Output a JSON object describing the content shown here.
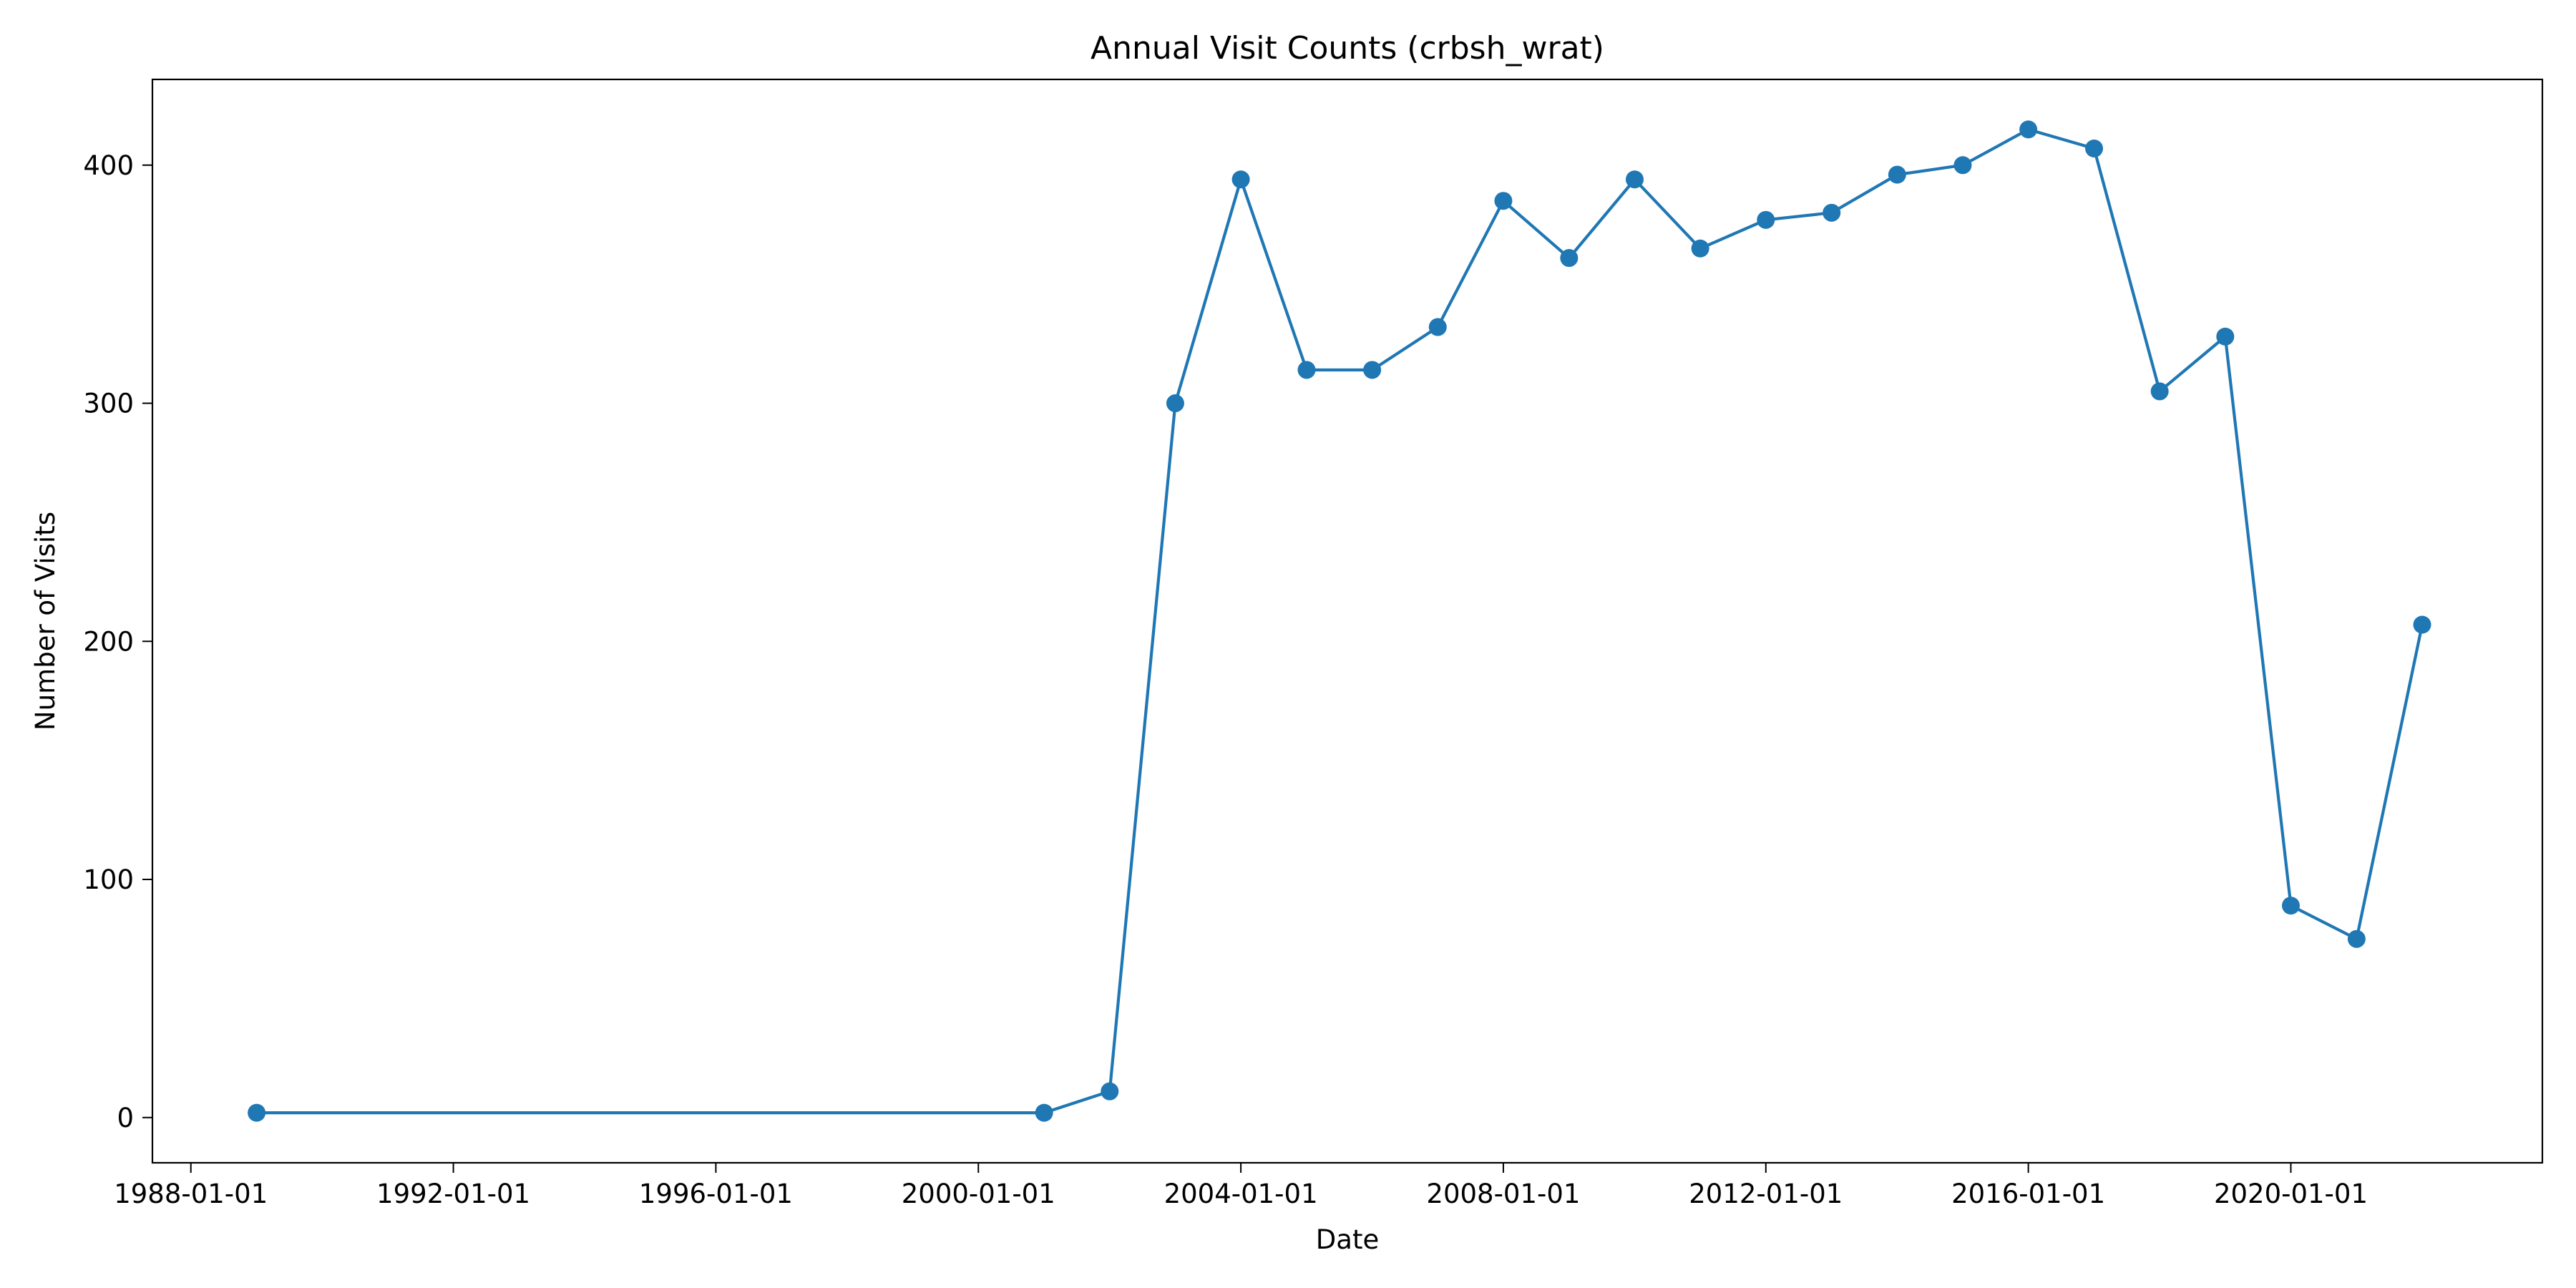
{
  "chart_data": {
    "type": "line",
    "title": "Annual Visit Counts (crbsh_wrat)",
    "xlabel": "Date",
    "ylabel": "Number of Visits",
    "xlim": [
      "1987-06-01",
      "2023-11-01"
    ],
    "ylim": [
      -19,
      436
    ],
    "x_ticks": [
      "1988-01-01",
      "1992-01-01",
      "1996-01-01",
      "2000-01-01",
      "2004-01-01",
      "2008-01-01",
      "2012-01-01",
      "2016-01-01",
      "2020-01-01"
    ],
    "y_ticks": [
      0,
      100,
      200,
      300,
      400
    ],
    "grid": false,
    "legend": "none",
    "color": "#1f77b4",
    "marker": "circle",
    "series": [
      {
        "x": [
          "1989-01-01",
          "2001-01-01",
          "2002-01-01",
          "2003-01-01",
          "2004-01-01",
          "2005-01-01",
          "2006-01-01",
          "2007-01-01",
          "2008-01-01",
          "2009-01-01",
          "2010-01-01",
          "2011-01-01",
          "2012-01-01",
          "2013-01-01",
          "2014-01-01",
          "2015-01-01",
          "2016-01-01",
          "2017-01-01",
          "2018-01-01",
          "2019-01-01",
          "2020-01-01",
          "2021-01-01",
          "2022-01-01"
        ],
        "y": [
          2,
          2,
          11,
          300,
          394,
          314,
          314,
          332,
          385,
          361,
          394,
          365,
          377,
          380,
          396,
          400,
          415,
          407,
          305,
          328,
          89,
          75,
          207
        ]
      }
    ]
  }
}
